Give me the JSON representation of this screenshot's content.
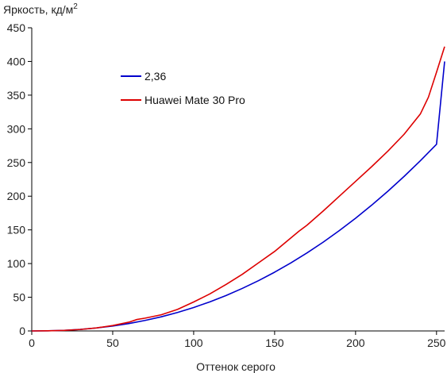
{
  "chart_data": {
    "type": "line",
    "ylabel": "Яркость, кд/м",
    "ylabel_sup": "2",
    "xlabel": "Оттенок серого",
    "xlim": [
      0,
      255
    ],
    "ylim": [
      0,
      450
    ],
    "x_ticks": [
      0,
      50,
      100,
      150,
      200,
      250
    ],
    "y_ticks": [
      0,
      50,
      100,
      150,
      200,
      250,
      300,
      350,
      400,
      450
    ],
    "grid": false,
    "legend_position": "upper-left",
    "series": [
      {
        "name": "2,36",
        "color": "#0000cc",
        "x": [
          0,
          10,
          20,
          30,
          40,
          50,
          60,
          70,
          80,
          90,
          100,
          110,
          120,
          130,
          140,
          150,
          160,
          170,
          180,
          190,
          200,
          210,
          220,
          230,
          240,
          250,
          255
        ],
        "y": [
          0,
          0.2,
          0.9,
          2.3,
          4.4,
          7.3,
          11,
          15.6,
          21,
          27.4,
          34.8,
          43.2,
          52.6,
          63.1,
          74.6,
          87.2,
          101,
          115.8,
          131.8,
          149,
          167.3,
          186.8,
          207.5,
          229.4,
          252.6,
          277,
          400
        ]
      },
      {
        "name": "Huawei Mate 30 Pro",
        "color": "#dd0000",
        "x": [
          0,
          10,
          20,
          30,
          40,
          50,
          60,
          65,
          70,
          80,
          90,
          100,
          110,
          120,
          130,
          140,
          150,
          160,
          165,
          170,
          180,
          190,
          200,
          210,
          220,
          230,
          240,
          245,
          250,
          255
        ],
        "y": [
          0,
          0.2,
          0.8,
          2.2,
          4.5,
          8,
          13,
          17,
          19,
          24,
          32,
          43,
          55,
          69,
          84,
          101,
          118,
          138,
          148,
          157,
          178,
          200,
          222,
          244,
          267,
          292,
          322,
          347,
          384,
          422
        ]
      }
    ]
  }
}
